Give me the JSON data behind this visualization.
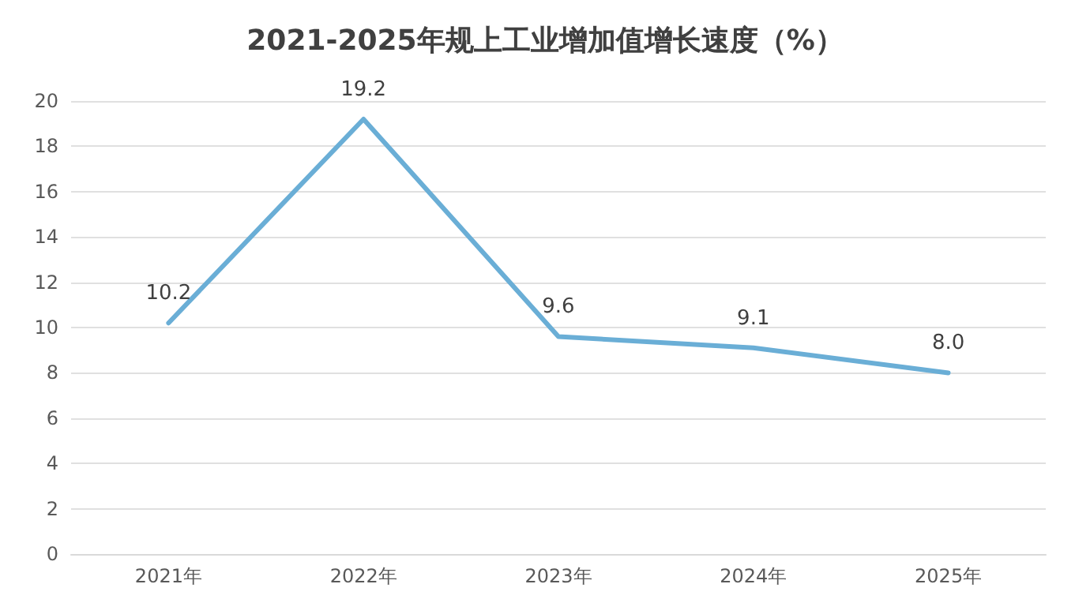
{
  "chart_data": {
    "type": "line",
    "title": "2021-2025年规上工业增加值增长速度（%）",
    "categories": [
      "2021年",
      "2022年",
      "2023年",
      "2024年",
      "2025年"
    ],
    "series": [
      {
        "color": "#6aaed6",
        "values": [
          10.2,
          19.2,
          9.6,
          9.1,
          8.0
        ],
        "value_labels": [
          "10.2",
          "19.2",
          "9.6",
          "9.1",
          "8.0"
        ]
      }
    ],
    "ylim": [
      0,
      20
    ],
    "yticks": [
      0,
      2,
      4,
      6,
      8,
      10,
      12,
      14,
      16,
      18,
      20
    ],
    "grid": "y",
    "marker": "none",
    "line_style": "solid"
  }
}
